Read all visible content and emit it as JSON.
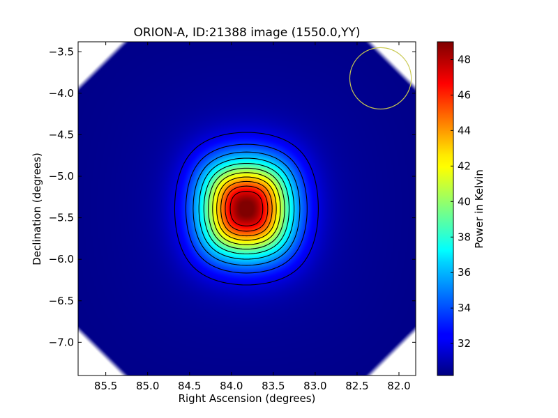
{
  "chart_data": {
    "type": "heatmap",
    "title": "ORION-A, ID:21388 image (1550.0,YY)",
    "xlabel": "Right Ascension (degrees)",
    "ylabel": "Declination (degrees)",
    "colorbar_label": "Power in Kelvin",
    "xlim": [
      85.83,
      81.8
    ],
    "ylim": [
      -7.4,
      -3.38
    ],
    "x_ticks": [
      85.5,
      85.0,
      84.5,
      84.0,
      83.5,
      83.0,
      82.5,
      82.0
    ],
    "x_tick_labels": [
      "85.5",
      "85.0",
      "84.5",
      "84.0",
      "83.5",
      "83.0",
      "82.5",
      "82.0"
    ],
    "y_ticks": [
      -3.5,
      -4.0,
      -4.5,
      -5.0,
      -5.5,
      -6.0,
      -6.5,
      -7.0
    ],
    "y_tick_labels": [
      "−3.5",
      "−4.0",
      "−4.5",
      "−5.0",
      "−5.5",
      "−6.0",
      "−6.5",
      "−7.0"
    ],
    "colorbar_range": [
      30.2,
      49.0
    ],
    "colorbar_ticks": [
      32,
      34,
      36,
      38,
      40,
      42,
      44,
      46,
      48
    ],
    "colorbar_tick_labels": [
      "32",
      "34",
      "36",
      "38",
      "40",
      "42",
      "44",
      "46",
      "48"
    ],
    "colormap": "jet",
    "peak": {
      "ra": 83.82,
      "dec": -5.39,
      "value": 48.8
    },
    "baseline_value": 30.3,
    "beam_circle": {
      "ra": 82.22,
      "dec": -3.82,
      "radius_deg": 0.37,
      "color": "#c8c850"
    },
    "contour_levels": [
      32.0,
      33.5,
      35.0,
      36.5,
      38.0,
      39.5,
      41.0,
      42.5,
      44.0,
      45.5,
      47.0
    ],
    "grid": false
  }
}
